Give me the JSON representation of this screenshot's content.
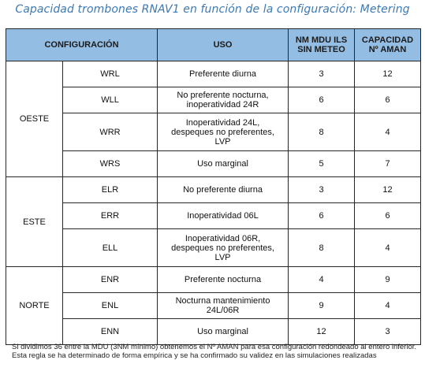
{
  "title": "Capacidad trombones RNAV1 en función de la configuración: Metering",
  "headers": {
    "configuracion": "CONFIGURACIÓN",
    "uso": "USO",
    "nm_line1": "NM MDU ILS",
    "nm_line2": "SIN METEO",
    "cap_line1": "CAPACIDAD",
    "cap_line2": "Nº AMAN"
  },
  "groups": [
    {
      "name": "OESTE",
      "rows": [
        {
          "config": "WRL",
          "uso_lines": [
            "Preferente diurna"
          ],
          "nm": "3",
          "cap": "12"
        },
        {
          "config": "WLL",
          "uso_lines": [
            "No preferente nocturna,",
            "inoperatividad 24R"
          ],
          "nm": "6",
          "cap": "6"
        },
        {
          "config": "WRR",
          "uso_lines": [
            "Inoperatividad 24L,",
            "despeques no preferentes,",
            "LVP"
          ],
          "nm": "8",
          "cap": "4"
        },
        {
          "config": "WRS",
          "uso_lines": [
            "Uso marginal"
          ],
          "nm": "5",
          "cap": "7"
        }
      ]
    },
    {
      "name": "ESTE",
      "rows": [
        {
          "config": "ELR",
          "uso_lines": [
            "No preferente diurna"
          ],
          "nm": "3",
          "cap": "12"
        },
        {
          "config": "ERR",
          "uso_lines": [
            "Inoperatividad 06L"
          ],
          "nm": "6",
          "cap": "6"
        },
        {
          "config": "ELL",
          "uso_lines": [
            "Inoperatividad 06R,",
            "despeques no preferentes,",
            "LVP"
          ],
          "nm": "8",
          "cap": "4"
        }
      ]
    },
    {
      "name": "NORTE",
      "rows": [
        {
          "config": "ENR",
          "uso_lines": [
            "Preferente nocturna"
          ],
          "nm": "4",
          "cap": "9"
        },
        {
          "config": "ENL",
          "uso_lines": [
            "Nocturna mantenimiento",
            "24L/06R"
          ],
          "nm": "9",
          "cap": "4"
        },
        {
          "config": "ENN",
          "uso_lines": [
            "Uso marginal"
          ],
          "nm": "12",
          "cap": "3"
        }
      ]
    }
  ],
  "note": "Si dividimos 36 entre la MDU (3NM mínimo) obtenemos el Nº AMAN para esa configuración redondeado al entero inferior. Esta regla se ha determinado de forma empírica y se ha confirmado su validez en las simulaciones realizadas"
}
